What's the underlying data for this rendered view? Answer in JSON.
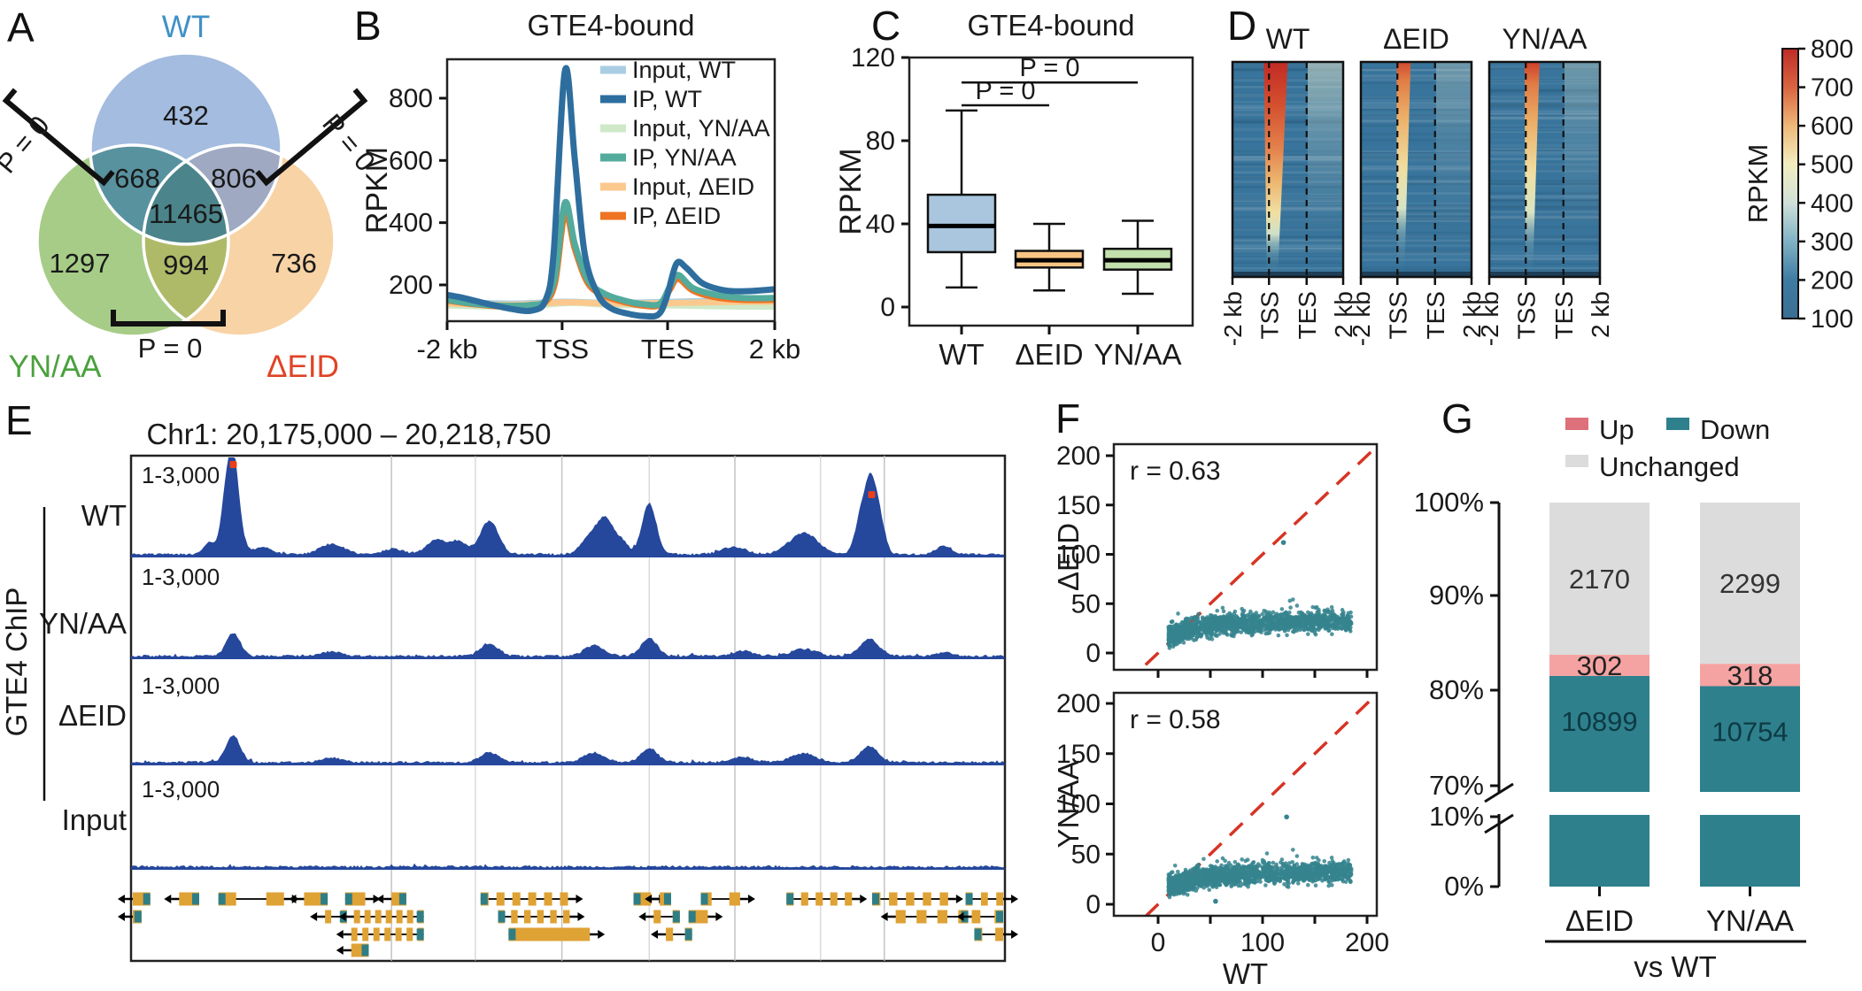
{
  "figure": {
    "background": "#ffffff"
  },
  "panels": {
    "A": {
      "letter": "A"
    },
    "B": {
      "letter": "B"
    },
    "C": {
      "letter": "C"
    },
    "D": {
      "letter": "D"
    },
    "E": {
      "letter": "E"
    },
    "F": {
      "letter": "F"
    },
    "G": {
      "letter": "G"
    }
  },
  "chart_data": [
    {
      "id": "A",
      "type": "venn",
      "sets": [
        {
          "label": "WT",
          "label_color": "#4191c6",
          "fill": "#a3bcdf"
        },
        {
          "label": "YN/AA",
          "label_color": "#4ba13e",
          "fill": "#a7cc88"
        },
        {
          "label": "ΔEID",
          "label_color": "#df4426",
          "fill": "#f8d3a6"
        }
      ],
      "overlap_fills": {
        "AB": "#58929f",
        "AC": "#9fa9c2",
        "BC": "#afba69",
        "ABC": "#4b858b"
      },
      "counts": {
        "WT_only": "432",
        "WT_and_YNAA": "668",
        "WT_and_DEID": "806",
        "center": "11465",
        "YNAA_only": "1297",
        "YNAA_and_DEID": "994",
        "DEID_only": "736"
      },
      "pvalue_left": "P = 0",
      "pvalue_right": "P = 0",
      "pvalue_bottom": "P = 0"
    },
    {
      "id": "B",
      "type": "line",
      "title": "GTE4-bound",
      "ylabel": "RPKM",
      "yticks": [
        200,
        400,
        600,
        800
      ],
      "xtick_labels": [
        "-2 kb",
        "TSS",
        "TES",
        "2 kb"
      ],
      "ylim": [
        60,
        940
      ],
      "series": [
        {
          "name": "Input, WT",
          "color": "#a9cee3",
          "points": [
            [
              0,
              146
            ],
            [
              0.2,
              140
            ],
            [
              0.36,
              146
            ],
            [
              0.5,
              142
            ],
            [
              0.7,
              146
            ],
            [
              0.85,
              150
            ],
            [
              1,
              152
            ]
          ]
        },
        {
          "name": "IP, WT",
          "color": "#2e6e9e",
          "points": [
            [
              0,
              168
            ],
            [
              0.05,
              158
            ],
            [
              0.12,
              140
            ],
            [
              0.2,
              122
            ],
            [
              0.26,
              118
            ],
            [
              0.3,
              150
            ],
            [
              0.325,
              300
            ],
            [
              0.36,
              890
            ],
            [
              0.39,
              600
            ],
            [
              0.42,
              300
            ],
            [
              0.46,
              170
            ],
            [
              0.5,
              125
            ],
            [
              0.55,
              108
            ],
            [
              0.6,
              100
            ],
            [
              0.645,
              105
            ],
            [
              0.67,
              160
            ],
            [
              0.7,
              268
            ],
            [
              0.73,
              255
            ],
            [
              0.78,
              205
            ],
            [
              0.85,
              182
            ],
            [
              0.92,
              180
            ],
            [
              1,
              186
            ]
          ]
        },
        {
          "name": "Input, YN/AA",
          "color": "#cfe9c8",
          "points": [
            [
              0,
              134
            ],
            [
              0.2,
              130
            ],
            [
              0.34,
              140
            ],
            [
              0.4,
              142
            ],
            [
              0.5,
              136
            ],
            [
              0.7,
              134
            ],
            [
              0.85,
              131
            ],
            [
              1,
              130
            ]
          ]
        },
        {
          "name": "IP, YN/AA",
          "color": "#52ab9c",
          "points": [
            [
              0,
              152
            ],
            [
              0.08,
              140
            ],
            [
              0.18,
              133
            ],
            [
              0.26,
              136
            ],
            [
              0.3,
              150
            ],
            [
              0.33,
              230
            ],
            [
              0.36,
              465
            ],
            [
              0.39,
              330
            ],
            [
              0.43,
              215
            ],
            [
              0.48,
              172
            ],
            [
              0.54,
              150
            ],
            [
              0.6,
              138
            ],
            [
              0.65,
              140
            ],
            [
              0.68,
              195
            ],
            [
              0.705,
              232
            ],
            [
              0.75,
              190
            ],
            [
              0.82,
              168
            ],
            [
              0.9,
              158
            ],
            [
              1,
              158
            ]
          ]
        },
        {
          "name": "Input, ΔEID",
          "color": "#fbc98e",
          "points": [
            [
              0,
              140
            ],
            [
              0.2,
              136
            ],
            [
              0.36,
              144
            ],
            [
              0.5,
              140
            ],
            [
              0.7,
              142
            ],
            [
              0.85,
              145
            ],
            [
              1,
              146
            ]
          ]
        },
        {
          "name": "IP, ΔEID",
          "color": "#ee7423",
          "points": [
            [
              0,
              150
            ],
            [
              0.08,
              138
            ],
            [
              0.18,
              130
            ],
            [
              0.26,
              132
            ],
            [
              0.3,
              145
            ],
            [
              0.33,
              210
            ],
            [
              0.36,
              432
            ],
            [
              0.39,
              315
            ],
            [
              0.43,
              205
            ],
            [
              0.48,
              165
            ],
            [
              0.54,
              145
            ],
            [
              0.6,
              133
            ],
            [
              0.65,
              136
            ],
            [
              0.68,
              185
            ],
            [
              0.705,
              220
            ],
            [
              0.75,
              182
            ],
            [
              0.82,
              160
            ],
            [
              0.9,
              152
            ],
            [
              1,
              152
            ]
          ]
        }
      ],
      "draw_order": [
        0,
        2,
        4,
        5,
        3,
        1
      ]
    },
    {
      "id": "C",
      "type": "box",
      "title": "GTE4-bound",
      "ylabel": "RPKM",
      "yticks": [
        0,
        40,
        80,
        120
      ],
      "boxes": [
        {
          "label": "WT",
          "fill": "#a9c6de",
          "low": 9.4,
          "q1": 26.4,
          "median": 39,
          "q3": 54,
          "high": 94.5
        },
        {
          "label": "ΔEID",
          "fill": "#f9c583",
          "low": 8,
          "q1": 19,
          "median": 22.5,
          "q3": 27,
          "high": 40
        },
        {
          "label": "YN/AA",
          "fill": "#c2e0ab",
          "low": 6.4,
          "q1": 18,
          "median": 22.5,
          "q3": 28,
          "high": 41.5
        }
      ],
      "comparisons": [
        {
          "label": "P = 0",
          "from": 0,
          "to": 1,
          "line_y_value": 97
        },
        {
          "label": "P = 0",
          "from": 0,
          "to": 2,
          "line_y_value": 108
        }
      ]
    },
    {
      "id": "D",
      "type": "heatmap",
      "titles": [
        "WT",
        "ΔEID",
        "YN/AA"
      ],
      "xtick_labels": [
        "-2 kb",
        "TSS",
        "TES",
        "2 kb"
      ],
      "colorbar": {
        "label": "RPKM",
        "ticks": [
          100,
          200,
          300,
          400,
          500,
          600,
          700,
          800
        ],
        "stops": [
          "#3a6f92",
          "#3f7ba3",
          "#7fb2c4",
          "#cfe0d8",
          "#f2edc0",
          "#eeb878",
          "#d96440",
          "#bf2b26"
        ]
      },
      "profiles": [
        {
          "top_w": 27,
          "bot_w": 12,
          "stops": [
            [
              "#c22a24",
              0
            ],
            [
              "#d4502f",
              0.2
            ],
            [
              "#e3814c",
              0.4
            ],
            [
              "#ecb46e",
              0.55
            ],
            [
              "#f0dfa2",
              0.7
            ],
            [
              "#cfe0c8",
              0.8
            ],
            [
              "rgba(110,160,175,0.4)",
              0.9
            ],
            [
              "rgba(60,118,152,0)",
              1
            ]
          ],
          "pale": 0.55
        },
        {
          "top_w": 16,
          "bot_w": 8,
          "stops": [
            [
              "#cf4a2e",
              0
            ],
            [
              "#e07b45",
              0.08
            ],
            [
              "#ecae67",
              0.25
            ],
            [
              "#f0dfa2",
              0.5
            ],
            [
              "#d9e4c4",
              0.68
            ],
            [
              "rgba(140,180,188,0.4)",
              0.82
            ],
            [
              "rgba(60,118,152,0)",
              1
            ]
          ],
          "pale": 0.32
        },
        {
          "top_w": 17,
          "bot_w": 8,
          "stops": [
            [
              "#cf3f2a",
              0
            ],
            [
              "#e07b45",
              0.1
            ],
            [
              "#ecae67",
              0.28
            ],
            [
              "#f0dfa2",
              0.52
            ],
            [
              "#d9e4c4",
              0.7
            ],
            [
              "rgba(140,180,188,0.4)",
              0.84
            ],
            [
              "rgba(60,118,152,0)",
              1
            ]
          ],
          "pale": 0.32
        }
      ],
      "base_color": "#38749b"
    },
    {
      "id": "E",
      "type": "genome_browser",
      "title": "Chr1: 20,175,000 – 20,218,750",
      "group_label": "GTE4 ChIP",
      "range_label": "1-3,000",
      "signal_color": "#25479c",
      "cap_color": "#e8401c",
      "exon_color": "#dfa235",
      "utr_color": "#2f7e85",
      "tracks": [
        {
          "label": "WT",
          "caps": [
            [
              0.117,
              108
            ],
            [
              0.8475,
              74
            ]
          ],
          "peaks": [
            [
              0.117,
              108,
              6
            ],
            [
              0.108,
              40,
              5
            ],
            [
              0.09,
              14,
              6
            ],
            [
              0.15,
              8,
              10
            ],
            [
              0.23,
              12,
              12
            ],
            [
              0.3,
              6,
              10
            ],
            [
              0.35,
              16,
              10
            ],
            [
              0.375,
              14,
              8
            ],
            [
              0.41,
              38,
              9
            ],
            [
              0.53,
              26,
              10
            ],
            [
              0.545,
              30,
              7
            ],
            [
              0.562,
              14,
              6
            ],
            [
              0.593,
              58,
              7
            ],
            [
              0.69,
              8,
              12
            ],
            [
              0.77,
              24,
              14
            ],
            [
              0.836,
              46,
              6
            ],
            [
              0.8475,
              74,
              5.5
            ],
            [
              0.858,
              30,
              5
            ],
            [
              0.93,
              9,
              8
            ]
          ]
        },
        {
          "label": "YN/AA",
          "caps": [],
          "peaks": [
            [
              0.117,
              26,
              7
            ],
            [
              0.23,
              5,
              10
            ],
            [
              0.41,
              14,
              9
            ],
            [
              0.53,
              12,
              10
            ],
            [
              0.593,
              20,
              8
            ],
            [
              0.7,
              6,
              10
            ],
            [
              0.77,
              8,
              12
            ],
            [
              0.845,
              20,
              9
            ],
            [
              0.93,
              4,
              8
            ]
          ]
        },
        {
          "label": "ΔEID",
          "caps": [],
          "peaks": [
            [
              0.117,
              30,
              7
            ],
            [
              0.23,
              5,
              10
            ],
            [
              0.41,
              11,
              9
            ],
            [
              0.53,
              11,
              10
            ],
            [
              0.593,
              16,
              8
            ],
            [
              0.7,
              6,
              10
            ],
            [
              0.77,
              10,
              12
            ],
            [
              0.845,
              18,
              9
            ]
          ]
        },
        {
          "label": "Input",
          "caps": [],
          "peaks": []
        }
      ],
      "gridlines": [
        0.298,
        0.394,
        0.493,
        0.593,
        0.691,
        0.789,
        0.862
      ],
      "genes": [
        [
          0.002,
          0.022,
          0,
          1,
          -1
        ],
        [
          0.055,
          0.078,
          0,
          1,
          -1
        ],
        [
          0.1,
          0.175,
          0,
          2,
          1
        ],
        [
          0.198,
          0.225,
          0,
          1,
          -1
        ],
        [
          0.245,
          0.268,
          0,
          1,
          1
        ],
        [
          0.298,
          0.315,
          0,
          1,
          -1
        ],
        [
          0.4,
          0.5,
          0,
          6,
          1
        ],
        [
          0.575,
          0.595,
          0,
          1,
          1
        ],
        [
          0.605,
          0.618,
          0,
          1,
          -1
        ],
        [
          0.652,
          0.697,
          0,
          2,
          1
        ],
        [
          0.75,
          0.825,
          0,
          5,
          1
        ],
        [
          0.848,
          0.935,
          0,
          5,
          1
        ],
        [
          0.955,
          0.998,
          0,
          3,
          1
        ],
        [
          0.002,
          0.012,
          1,
          1,
          -1
        ],
        [
          0.222,
          0.247,
          1,
          2,
          -1
        ],
        [
          0.255,
          0.335,
          1,
          7,
          -1
        ],
        [
          0.42,
          0.502,
          1,
          6,
          1
        ],
        [
          0.598,
          0.628,
          1,
          2,
          -1
        ],
        [
          0.638,
          0.66,
          1,
          1,
          1
        ],
        [
          0.875,
          0.958,
          1,
          4,
          -1
        ],
        [
          0.962,
          0.998,
          1,
          2,
          -1
        ],
        [
          0.252,
          0.335,
          2,
          7,
          -1
        ],
        [
          0.432,
          0.525,
          2,
          1,
          1
        ],
        [
          0.612,
          0.642,
          2,
          2,
          -1
        ],
        [
          0.965,
          0.998,
          2,
          2,
          1
        ],
        [
          0.252,
          0.272,
          3,
          1,
          -1
        ]
      ]
    },
    {
      "id": "F",
      "type": "scatter",
      "xlabel": "WT",
      "yticks": [
        0,
        50,
        100,
        150,
        200
      ],
      "xticks": [
        0,
        100,
        200
      ],
      "point_color": "#35848e",
      "identity_color": "#d63425",
      "plots": [
        {
          "ylabel": "ΔEID",
          "r_label": "r = 0.63",
          "outliers": [
            [
              120,
              112
            ]
          ],
          "n": 1500,
          "seed": 11
        },
        {
          "ylabel": "YN/AA",
          "r_label": "r = 0.58",
          "outliers": [
            [
              123,
              87
            ],
            [
              55,
              3
            ]
          ],
          "n": 1600,
          "seed": 29
        }
      ]
    },
    {
      "id": "G",
      "type": "stacked_bar",
      "legend": [
        {
          "label": "Up",
          "color": "#dd707a"
        },
        {
          "label": "Down",
          "color": "#2e808d"
        },
        {
          "label": "Unchanged",
          "color": "#dcdcdc"
        }
      ],
      "bar_colors": {
        "up": "#f5a3a2",
        "down": "#2e808d",
        "unchanged": "#dcdcdc"
      },
      "yticks": [
        "100%",
        "90%",
        "80%",
        "70%",
        "10%",
        "0%"
      ],
      "categories": [
        "ΔEID",
        "YN/AA"
      ],
      "values": [
        {
          "unchanged": 2170,
          "up": 302,
          "down": 10899
        },
        {
          "unchanged": 2299,
          "up": 318,
          "down": 10754
        }
      ],
      "group_label": "vs WT"
    }
  ]
}
